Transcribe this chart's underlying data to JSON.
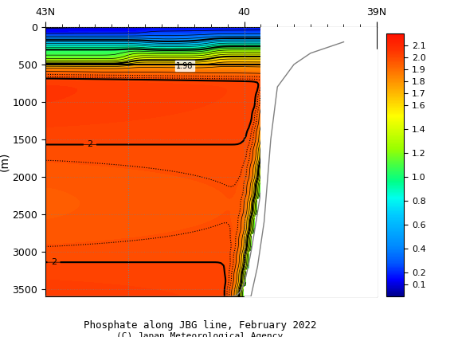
{
  "title": "Phosphate along JBG line, February 2022",
  "subtitle": "(C) Japan Meteorological Agency",
  "xlabel_top": [
    "43N",
    "40",
    "39N"
  ],
  "xlabel_top_pos": [
    0.0,
    0.6,
    1.0
  ],
  "ylabel": "(m)",
  "ylim": [
    3600,
    0
  ],
  "xlim": [
    0.0,
    1.0
  ],
  "yticks": [
    0,
    500,
    1000,
    1500,
    2000,
    2500,
    3000,
    3500
  ],
  "colorbar_levels": [
    0.1,
    0.2,
    0.4,
    0.6,
    0.8,
    1.0,
    1.2,
    1.4,
    1.6,
    1.7,
    1.8,
    1.9,
    2.0,
    2.1
  ],
  "vmin": 0.0,
  "vmax": 2.2,
  "hline_y": 500,
  "dotted_line_color": "#555555",
  "bg_color": "#ffffff"
}
